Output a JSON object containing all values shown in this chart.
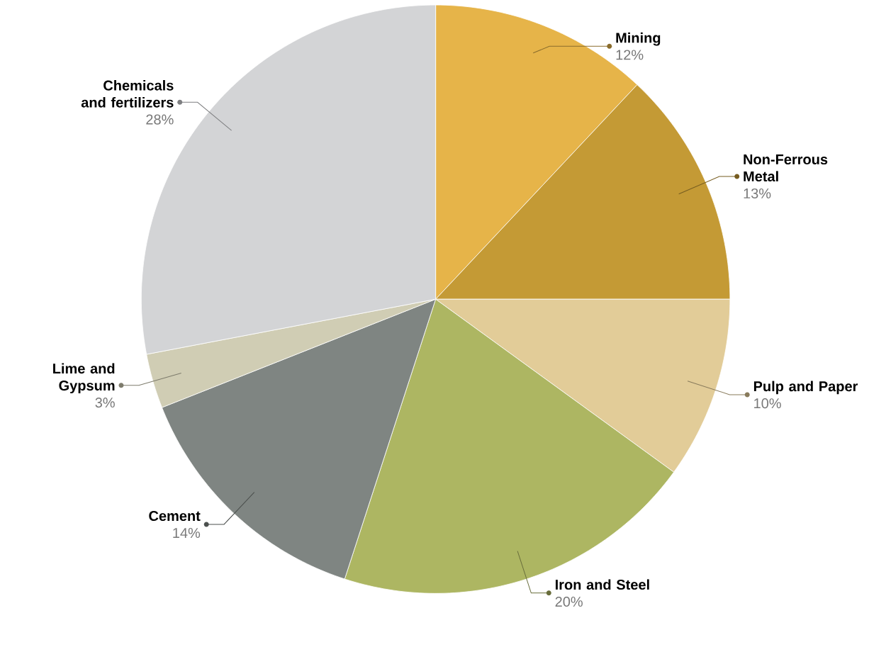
{
  "chart_data": {
    "type": "pie",
    "categories": [
      "Mining",
      "Non-Ferrous Metal",
      "Pulp and Paper",
      "Iron and Steel",
      "Cement",
      "Lime and Gypsum",
      "Chemicals and fertilizers"
    ],
    "values": [
      12,
      13,
      10,
      20,
      14,
      3,
      28
    ],
    "value_labels": [
      "12%",
      "13%",
      "10%",
      "20%",
      "14%",
      "3%",
      "28%"
    ],
    "colors": [
      "#e6b449",
      "#c49a35",
      "#e2cc98",
      "#adb662",
      "#7f8582",
      "#d0cdb4",
      "#d3d4d6"
    ]
  }
}
